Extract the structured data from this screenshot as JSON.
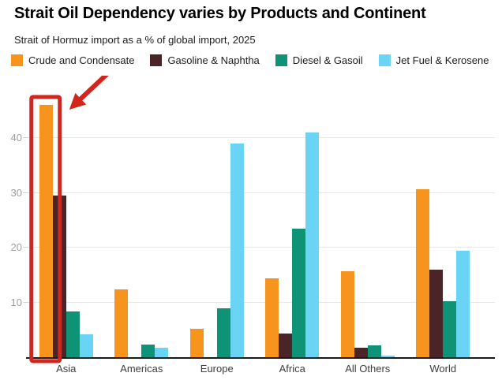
{
  "header": {
    "title": "Strait Oil Dependency varies by Products and Continent",
    "subtitle": "Strait of Hormuz import as a % of global import, 2025"
  },
  "legend": [
    {
      "label": "Crude and Condensate",
      "color": "#F7941D"
    },
    {
      "label": "Gasoline & Naphtha",
      "color": "#4A2427"
    },
    {
      "label": "Diesel & Gasoil",
      "color": "#0E9377"
    },
    {
      "label": "Jet Fuel & Kerosene",
      "color": "#69D4F3"
    }
  ],
  "chart_data": {
    "type": "bar",
    "title": "Strait Oil Dependency varies by Products and Continent",
    "subtitle": "Strait of Hormuz import as a % of global import, 2025",
    "categories": [
      "Asia",
      "Americas",
      "Europe",
      "Africa",
      "All Others",
      "World"
    ],
    "series": [
      {
        "name": "Crude and Condensate",
        "color": "#F7941D",
        "values": [
          46,
          12.5,
          5.3,
          14.5,
          15.8,
          30.7
        ]
      },
      {
        "name": "Gasoline & Naphtha",
        "color": "#4A2427",
        "values": [
          29.5,
          0,
          0,
          4.5,
          1.8,
          16
        ]
      },
      {
        "name": "Diesel & Gasoil",
        "color": "#0E9377",
        "values": [
          8.5,
          2.5,
          9,
          23.5,
          2.3,
          10.3
        ]
      },
      {
        "name": "Jet Fuel & Kerosene",
        "color": "#69D4F3",
        "values": [
          4.3,
          1.8,
          39,
          41,
          0.5,
          19.5
        ]
      }
    ],
    "xlabel": "",
    "ylabel": "",
    "ylim": [
      0,
      49
    ],
    "yticks": [
      10,
      20,
      30,
      40
    ],
    "grid": true,
    "legend_position": "top",
    "annotation": {
      "type": "highlight-box-with-arrow",
      "target_category": "Asia",
      "target_series": "Crude and Condensate",
      "color": "#D2251C"
    }
  }
}
